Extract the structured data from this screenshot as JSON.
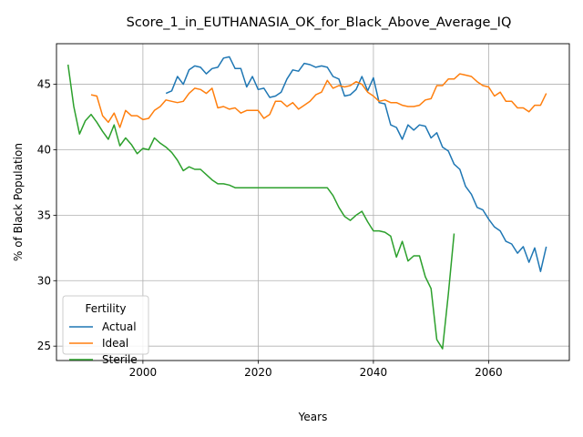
{
  "chart_data": {
    "type": "line",
    "title": "Score_1_in_EUTHANASIA_OK_for_Black_Above_Average_IQ",
    "xlabel": "Years",
    "ylabel": "% of Black Population",
    "xlim": [
      1985,
      2074
    ],
    "ylim": [
      23.9,
      48.1
    ],
    "xticks": [
      2000,
      2020,
      2040,
      2060
    ],
    "yticks": [
      25,
      30,
      35,
      40,
      45
    ],
    "grid": true,
    "legend": {
      "title": "Fertility",
      "placement": "lower-left"
    },
    "series": [
      {
        "name": "Actual",
        "color": "#1f77b4",
        "x": [
          2004,
          2005,
          2006,
          2007,
          2008,
          2009,
          2010,
          2011,
          2012,
          2013,
          2014,
          2015,
          2016,
          2017,
          2018,
          2019,
          2020,
          2021,
          2022,
          2023,
          2024,
          2025,
          2026,
          2027,
          2028,
          2029,
          2030,
          2031,
          2032,
          2033,
          2034,
          2035,
          2036,
          2037,
          2038,
          2039,
          2040,
          2041,
          2042,
          2043,
          2044,
          2045,
          2046,
          2047,
          2048,
          2049,
          2050,
          2051,
          2052,
          2053,
          2054,
          2055,
          2056,
          2057,
          2058,
          2059,
          2060,
          2061,
          2062,
          2063,
          2064,
          2065,
          2066,
          2067,
          2068,
          2069,
          2070
        ],
        "y": [
          44.3,
          44.5,
          45.6,
          45.0,
          46.1,
          46.4,
          46.3,
          45.8,
          46.2,
          46.3,
          47.0,
          47.1,
          46.2,
          46.2,
          44.8,
          45.6,
          44.6,
          44.7,
          44.0,
          44.1,
          44.4,
          45.4,
          46.1,
          46.0,
          46.6,
          46.5,
          46.3,
          46.4,
          46.3,
          45.6,
          45.4,
          44.1,
          44.2,
          44.6,
          45.6,
          44.5,
          45.5,
          43.6,
          43.5,
          41.9,
          41.7,
          40.8,
          41.9,
          41.5,
          41.9,
          41.8,
          40.9,
          41.3,
          40.2,
          39.9,
          38.9,
          38.5,
          37.2,
          36.6,
          35.6,
          35.4,
          34.7,
          34.1,
          33.8,
          33.0,
          32.8,
          32.1,
          32.6,
          31.4,
          32.5,
          30.7,
          32.6
        ]
      },
      {
        "name": "Ideal",
        "color": "#ff7f0e",
        "x": [
          1991,
          1992,
          1993,
          1994,
          1995,
          1996,
          1997,
          1998,
          1999,
          2000,
          2001,
          2002,
          2003,
          2004,
          2005,
          2006,
          2007,
          2008,
          2009,
          2010,
          2011,
          2012,
          2013,
          2014,
          2015,
          2016,
          2017,
          2018,
          2019,
          2020,
          2021,
          2022,
          2023,
          2024,
          2025,
          2026,
          2027,
          2028,
          2029,
          2030,
          2031,
          2032,
          2033,
          2034,
          2035,
          2036,
          2037,
          2038,
          2039,
          2040,
          2041,
          2042,
          2043,
          2044,
          2045,
          2046,
          2047,
          2048,
          2049,
          2050,
          2051,
          2052,
          2053,
          2054,
          2055,
          2056,
          2057,
          2058,
          2059,
          2060,
          2061,
          2062,
          2063,
          2064,
          2065,
          2066,
          2067,
          2068,
          2069,
          2070
        ],
        "y": [
          44.2,
          44.1,
          42.6,
          42.1,
          42.8,
          41.7,
          43.0,
          42.6,
          42.6,
          42.3,
          42.4,
          43.0,
          43.3,
          43.8,
          43.7,
          43.6,
          43.7,
          44.3,
          44.7,
          44.6,
          44.3,
          44.7,
          43.2,
          43.3,
          43.1,
          43.2,
          42.8,
          43.0,
          43.0,
          43.0,
          42.4,
          42.7,
          43.7,
          43.7,
          43.3,
          43.6,
          43.1,
          43.4,
          43.7,
          44.2,
          44.4,
          45.3,
          44.7,
          44.9,
          44.8,
          44.9,
          45.2,
          45.0,
          44.4,
          44.1,
          43.7,
          43.8,
          43.6,
          43.6,
          43.4,
          43.3,
          43.3,
          43.4,
          43.8,
          43.9,
          44.9,
          44.9,
          45.4,
          45.4,
          45.8,
          45.7,
          45.6,
          45.2,
          44.9,
          44.8,
          44.1,
          44.4,
          43.7,
          43.7,
          43.2,
          43.2,
          42.9,
          43.4,
          43.4,
          44.3
        ]
      },
      {
        "name": "Sterile",
        "color": "#2ca02c",
        "x": [
          1987,
          1988,
          1989,
          1990,
          1991,
          1992,
          1993,
          1994,
          1995,
          1996,
          1997,
          1998,
          1999,
          2000,
          2001,
          2002,
          2003,
          2004,
          2005,
          2006,
          2007,
          2008,
          2009,
          2010,
          2011,
          2012,
          2013,
          2014,
          2015,
          2016,
          2017,
          2018,
          2019,
          2020,
          2021,
          2022,
          2023,
          2024,
          2025,
          2026,
          2027,
          2028,
          2029,
          2030,
          2031,
          2032,
          2033,
          2034,
          2035,
          2036,
          2037,
          2038,
          2039,
          2040,
          2041,
          2042,
          2043,
          2044,
          2045,
          2046,
          2047,
          2048,
          2049,
          2050,
          2051,
          2052,
          2053,
          2054
        ],
        "y": [
          46.5,
          43.3,
          41.2,
          42.2,
          42.7,
          42.1,
          41.4,
          40.8,
          41.9,
          40.3,
          40.9,
          40.4,
          39.7,
          40.1,
          40.0,
          40.9,
          40.5,
          40.2,
          39.8,
          39.2,
          38.4,
          38.7,
          38.5,
          38.5,
          38.1,
          37.7,
          37.4,
          37.4,
          37.3,
          37.1,
          37.1,
          37.1,
          37.1,
          37.1,
          37.1,
          37.1,
          37.1,
          37.1,
          37.1,
          37.1,
          37.1,
          37.1,
          37.1,
          37.1,
          37.1,
          37.1,
          36.5,
          35.6,
          34.9,
          34.6,
          35.0,
          35.3,
          34.5,
          33.8,
          33.8,
          33.7,
          33.4,
          31.8,
          33.0,
          31.5,
          31.9,
          31.9,
          30.3,
          29.4,
          25.5,
          24.8,
          29.0,
          33.6
        ]
      }
    ]
  }
}
